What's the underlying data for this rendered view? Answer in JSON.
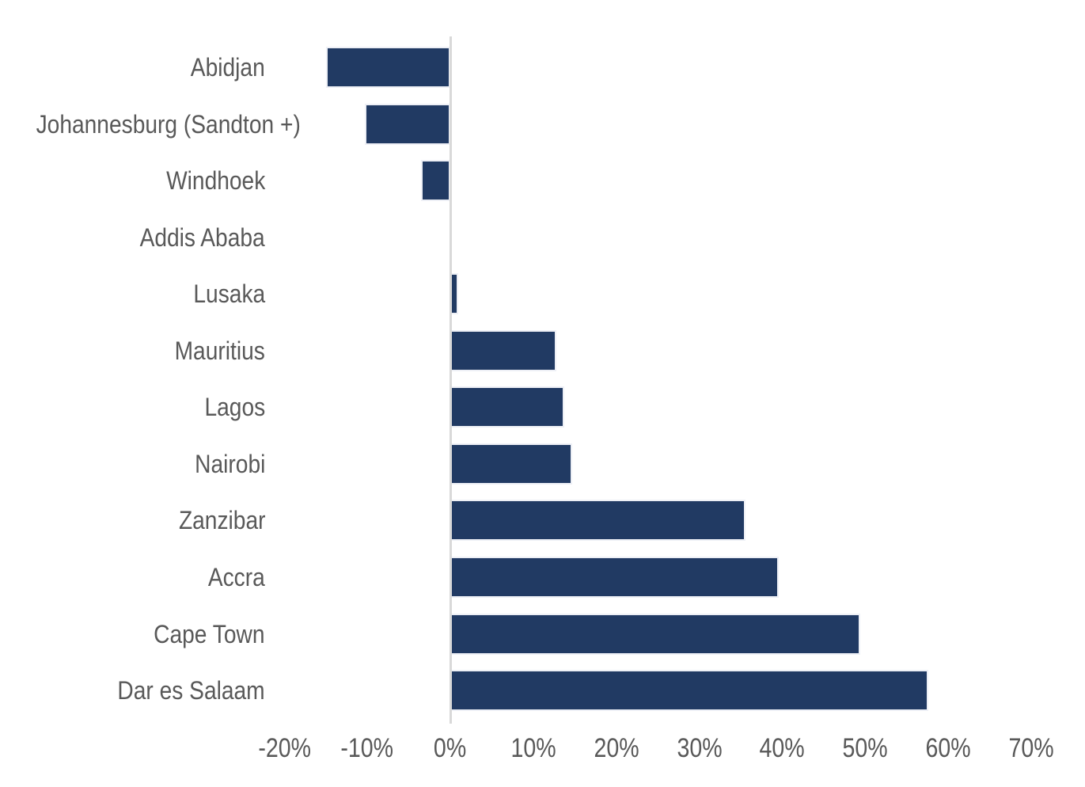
{
  "chart_data": {
    "type": "bar",
    "orientation": "horizontal",
    "title": "",
    "xlabel": "",
    "ylabel": "",
    "value_unit": "%",
    "categories": [
      "Abidjan",
      "Johannesburg (Sandton +)",
      "Windhoek",
      "Addis Ababa",
      "Lusaka",
      "Mauritius",
      "Lagos",
      "Nairobi",
      "Zanzibar",
      "Accra",
      "Cape Town",
      "Dar es Salaam"
    ],
    "values": [
      -15,
      -10.3,
      -3.5,
      0,
      1,
      12.8,
      13.7,
      14.7,
      35.6,
      39.6,
      49.4,
      57.6
    ],
    "x_ticks": [
      "-20%",
      "-10%",
      "0%",
      "10%",
      "20%",
      "30%",
      "40%",
      "50%",
      "60%",
      "70%"
    ],
    "x_tick_values": [
      -20,
      -10,
      0,
      10,
      20,
      30,
      40,
      50,
      60,
      70
    ],
    "xlim": [
      -20,
      70
    ],
    "grid": false,
    "legend": false,
    "colors": {
      "bar": "#213a63",
      "bar_edge": "#eef0f6",
      "zero_axis_line": "#d9d9d9",
      "labels": "#595959",
      "background": "#ffffff"
    }
  }
}
